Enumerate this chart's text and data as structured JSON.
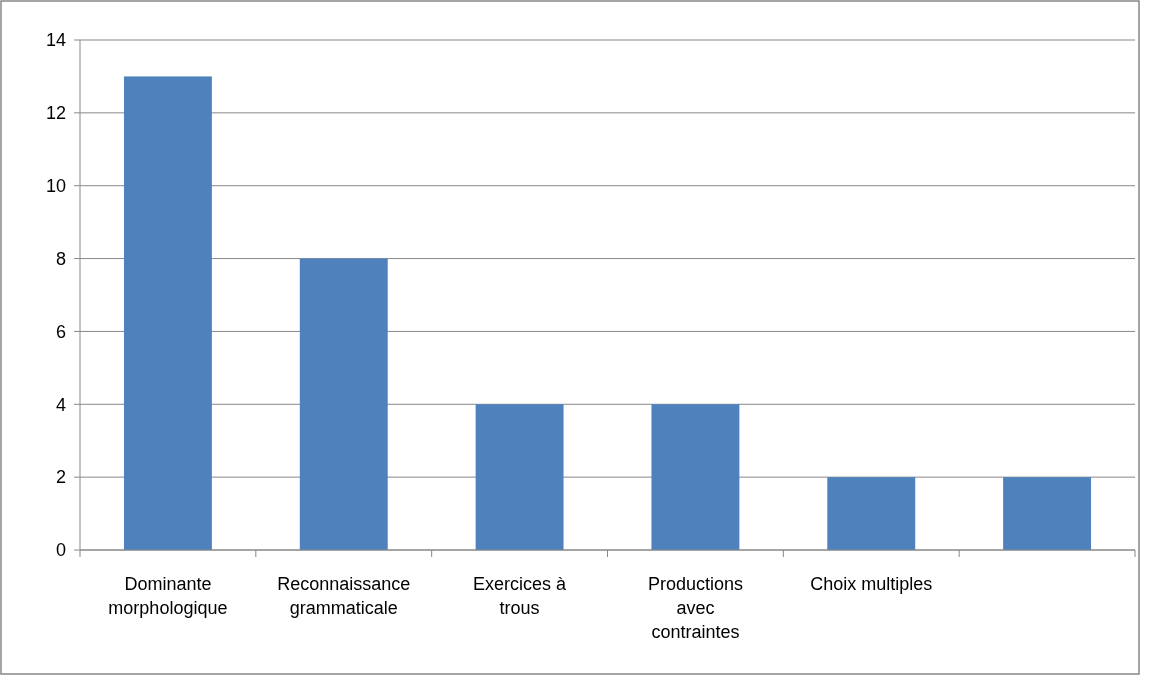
{
  "chart_data": {
    "type": "bar",
    "categories": [
      "Dominante morphologique",
      "Reconnaissance grammaticale",
      "Exercices à trous",
      "Productions avec contraintes",
      "Choix multiples",
      null
    ],
    "values": [
      13,
      8,
      4,
      4,
      2,
      2
    ],
    "color": "#4f81bd",
    "ylim": [
      0,
      14
    ],
    "yticks": [
      0,
      2,
      4,
      6,
      8,
      10,
      12,
      14
    ],
    "grid": "y"
  }
}
